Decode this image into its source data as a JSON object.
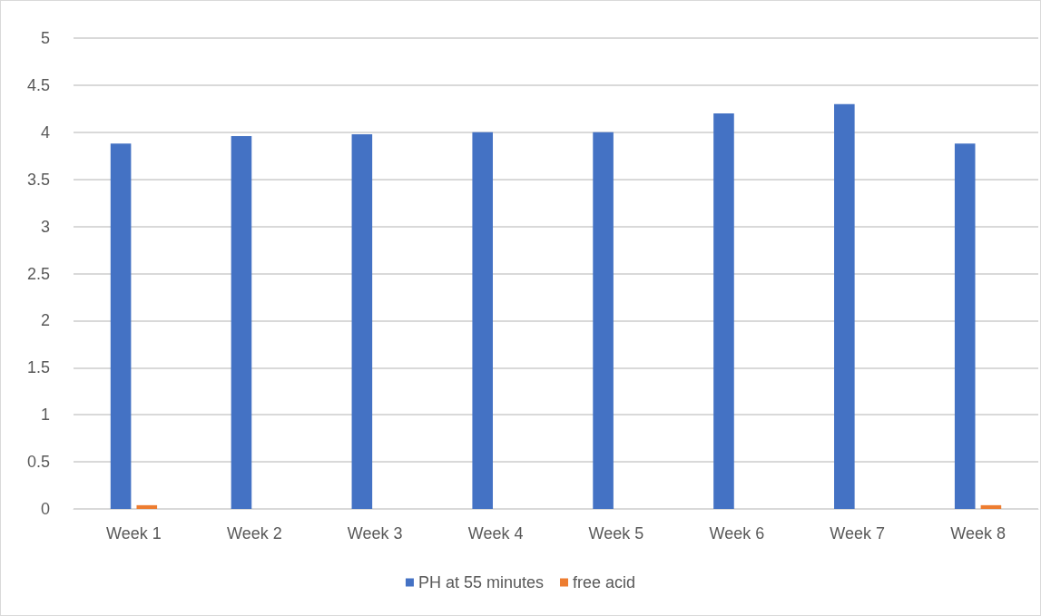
{
  "chart_data": {
    "type": "bar",
    "categories": [
      "Week 1",
      "Week 2",
      "Week 3",
      "Week 4",
      "Week 5",
      "Week 6",
      "Week 7",
      "Week 8"
    ],
    "series": [
      {
        "name": "PH at 55 minutes",
        "color": "#4472c4",
        "values": [
          3.88,
          3.96,
          3.98,
          4.0,
          4.0,
          4.2,
          4.3,
          3.88
        ]
      },
      {
        "name": "free acid",
        "color": "#ed7d31",
        "values": [
          0.04,
          0,
          0,
          0,
          0,
          0,
          0,
          0.04
        ]
      }
    ],
    "ylim": [
      0,
      5
    ],
    "yticks": [
      0,
      0.5,
      1,
      1.5,
      2,
      2.5,
      3,
      3.5,
      4,
      4.5,
      5
    ],
    "grid": "y",
    "legend": "bottom"
  }
}
